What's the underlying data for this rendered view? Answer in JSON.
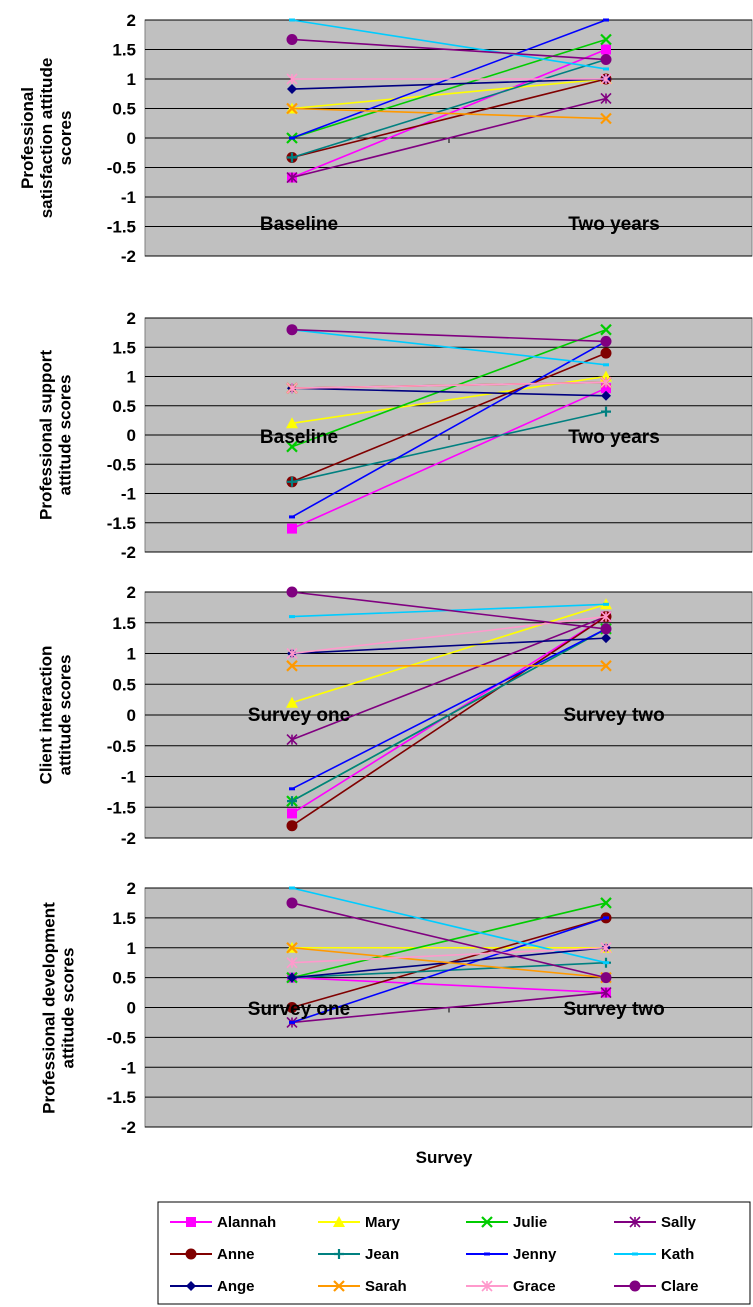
{
  "chart_data": [
    {
      "type": "line",
      "ylabel": "Professional satisfaction attitude scores",
      "categories": [
        "Baseline",
        "Two years"
      ],
      "ylim": [
        -2,
        2
      ],
      "yticks": [
        "2",
        "1.5",
        "1",
        "0.5",
        "0",
        "-0.5",
        "-1",
        "-1.5",
        "-2"
      ],
      "grid": true,
      "series": [
        {
          "name": "Alannah",
          "values": [
            -0.67,
            1.5
          ]
        },
        {
          "name": "Mary",
          "values": [
            0.5,
            1.0
          ]
        },
        {
          "name": "Julie",
          "values": [
            0.0,
            1.67
          ]
        },
        {
          "name": "Sally",
          "values": [
            -0.67,
            0.67
          ]
        },
        {
          "name": "Anne",
          "values": [
            -0.33,
            1.0
          ]
        },
        {
          "name": "Jean",
          "values": [
            -0.33,
            1.33
          ]
        },
        {
          "name": "Jenny",
          "values": [
            0.0,
            2.0
          ]
        },
        {
          "name": "Kath",
          "values": [
            2.0,
            1.17
          ]
        },
        {
          "name": "Ange",
          "values": [
            0.83,
            1.0
          ]
        },
        {
          "name": "Sarah",
          "values": [
            0.5,
            0.33
          ]
        },
        {
          "name": "Grace",
          "values": [
            1.0,
            1.0
          ]
        },
        {
          "name": "Clare",
          "values": [
            1.67,
            1.33
          ]
        }
      ]
    },
    {
      "type": "line",
      "ylabel": "Professional support attitude scores",
      "categories": [
        "Baseline",
        "Two years"
      ],
      "ylim": [
        -2,
        2
      ],
      "yticks": [
        "2",
        "1.5",
        "1",
        "0.5",
        "0",
        "-0.5",
        "-1",
        "-1.5",
        "-2"
      ],
      "grid": true,
      "series": [
        {
          "name": "Alannah",
          "values": [
            -1.6,
            0.8
          ]
        },
        {
          "name": "Mary",
          "values": [
            0.2,
            1.0
          ]
        },
        {
          "name": "Julie",
          "values": [
            -0.2,
            1.8
          ]
        },
        {
          "name": "Sally",
          "values": [
            0.8,
            0.9
          ]
        },
        {
          "name": "Anne",
          "values": [
            -0.8,
            1.4
          ]
        },
        {
          "name": "Jean",
          "values": [
            -0.8,
            0.4
          ]
        },
        {
          "name": "Jenny",
          "values": [
            -1.4,
            1.6
          ]
        },
        {
          "name": "Kath",
          "values": [
            1.8,
            1.2
          ]
        },
        {
          "name": "Ange",
          "values": [
            0.8,
            0.67
          ]
        },
        {
          "name": "Sarah",
          "values": [
            0.8,
            0.9
          ]
        },
        {
          "name": "Grace",
          "values": [
            0.8,
            0.9
          ]
        },
        {
          "name": "Clare",
          "values": [
            1.8,
            1.6
          ]
        }
      ]
    },
    {
      "type": "line",
      "ylabel": "Client interaction attitude scores",
      "categories": [
        "Survey one",
        "Survey two"
      ],
      "ylim": [
        -2,
        2
      ],
      "yticks": [
        "2",
        "1.5",
        "1",
        "0.5",
        "0",
        "-0.5",
        "-1",
        "-1.5",
        "-2"
      ],
      "grid": true,
      "series": [
        {
          "name": "Alannah",
          "values": [
            -1.6,
            1.6
          ]
        },
        {
          "name": "Mary",
          "values": [
            0.2,
            1.8
          ]
        },
        {
          "name": "Julie",
          "values": [
            -1.4,
            1.4
          ]
        },
        {
          "name": "Sally",
          "values": [
            -0.4,
            1.6
          ]
        },
        {
          "name": "Anne",
          "values": [
            -1.8,
            1.6
          ]
        },
        {
          "name": "Jean",
          "values": [
            -1.4,
            1.4
          ]
        },
        {
          "name": "Jenny",
          "values": [
            -1.2,
            1.4
          ]
        },
        {
          "name": "Kath",
          "values": [
            1.6,
            1.8
          ]
        },
        {
          "name": "Ange",
          "values": [
            1.0,
            1.25
          ]
        },
        {
          "name": "Sarah",
          "values": [
            0.8,
            0.8
          ]
        },
        {
          "name": "Grace",
          "values": [
            1.0,
            1.6
          ]
        },
        {
          "name": "Clare",
          "values": [
            2.0,
            1.4
          ]
        }
      ]
    },
    {
      "type": "line",
      "ylabel": "Professional development attitude scores",
      "xlabel": "Survey",
      "categories": [
        "Survey one",
        "Survey two"
      ],
      "ylim": [
        -2,
        2
      ],
      "yticks": [
        "2",
        "1.5",
        "1",
        "0.5",
        "0",
        "-0.5",
        "-1",
        "-1.5",
        "-2"
      ],
      "grid": true,
      "series": [
        {
          "name": "Alannah",
          "values": [
            0.5,
            0.25
          ]
        },
        {
          "name": "Mary",
          "values": [
            1.0,
            1.0
          ]
        },
        {
          "name": "Julie",
          "values": [
            0.5,
            1.75
          ]
        },
        {
          "name": "Sally",
          "values": [
            -0.25,
            0.25
          ]
        },
        {
          "name": "Anne",
          "values": [
            0.0,
            1.5
          ]
        },
        {
          "name": "Jean",
          "values": [
            0.5,
            0.75
          ]
        },
        {
          "name": "Jenny",
          "values": [
            -0.25,
            1.5
          ]
        },
        {
          "name": "Kath",
          "values": [
            2.0,
            0.75
          ]
        },
        {
          "name": "Ange",
          "values": [
            0.5,
            1.0
          ]
        },
        {
          "name": "Sarah",
          "values": [
            1.0,
            0.5
          ]
        },
        {
          "name": "Grace",
          "values": [
            0.75,
            1.0
          ]
        },
        {
          "name": "Clare",
          "values": [
            1.75,
            0.5
          ]
        }
      ]
    }
  ],
  "legend": {
    "placement": "bottom",
    "items": [
      {
        "name": "Alannah",
        "color": "#ff00ff",
        "marker": "square"
      },
      {
        "name": "Mary",
        "color": "#ffff00",
        "marker": "triangle"
      },
      {
        "name": "Julie",
        "color": "#00cc00",
        "marker": "x"
      },
      {
        "name": "Sally",
        "color": "#800080",
        "marker": "asterisk"
      },
      {
        "name": "Anne",
        "color": "#800000",
        "marker": "circle"
      },
      {
        "name": "Jean",
        "color": "#008080",
        "marker": "plus"
      },
      {
        "name": "Jenny",
        "color": "#0000ff",
        "marker": "dash"
      },
      {
        "name": "Kath",
        "color": "#00ccff",
        "marker": "dash"
      },
      {
        "name": "Ange",
        "color": "#000080",
        "marker": "diamond"
      },
      {
        "name": "Sarah",
        "color": "#ff9900",
        "marker": "x"
      },
      {
        "name": "Grace",
        "color": "#ff99cc",
        "marker": "asterisk"
      },
      {
        "name": "Clare",
        "color": "#800080",
        "marker": "circle"
      }
    ]
  }
}
